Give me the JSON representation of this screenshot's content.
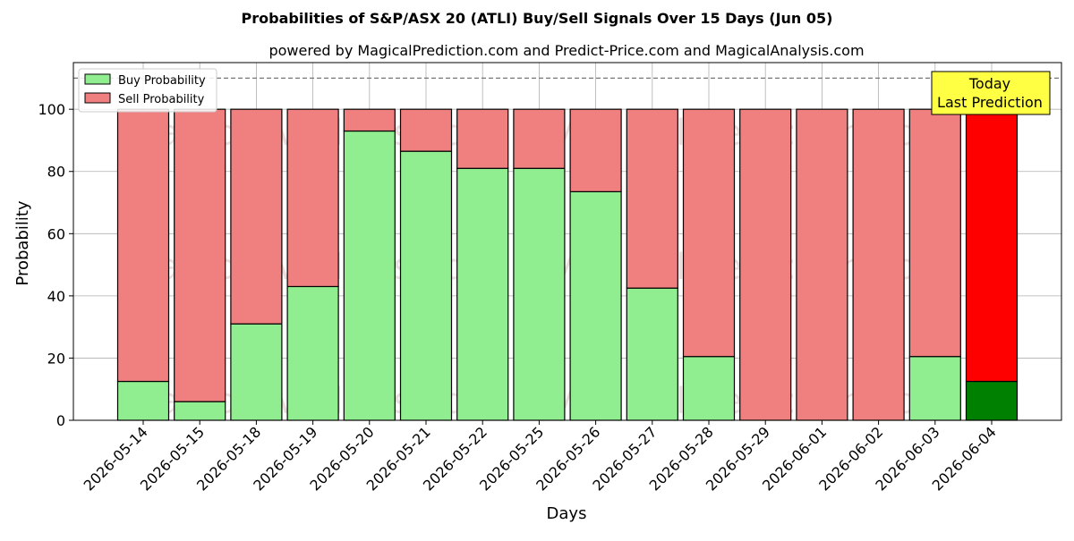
{
  "chart_data": {
    "type": "bar",
    "stacked": true,
    "title": "Probabilities of S&P/ASX 20 (ATLI) Buy/Sell Signals Over 15 Days (Jun 05)",
    "subtitle": "powered by MagicalPrediction.com and Predict-Price.com and MagicalAnalysis.com",
    "xlabel": "Days",
    "ylabel": "Probability",
    "ylim": [
      0,
      115
    ],
    "yticks": [
      0,
      20,
      40,
      60,
      80,
      100
    ],
    "grid": true,
    "legend_position": "top-left",
    "reference_line": 110,
    "categories": [
      "2026-05-14",
      "2026-05-15",
      "2026-05-18",
      "2026-05-19",
      "2026-05-20",
      "2026-05-21",
      "2026-05-22",
      "2026-05-25",
      "2026-05-26",
      "2026-05-27",
      "2026-05-28",
      "2026-05-29",
      "2026-06-01",
      "2026-06-02",
      "2026-06-03",
      "2026-06-04"
    ],
    "series": [
      {
        "name": "Buy Probability",
        "color": "#90ee90",
        "highlight_color": "#008000",
        "values": [
          12.5,
          6,
          31,
          43,
          93,
          86.5,
          81,
          81,
          73.5,
          42.5,
          20.5,
          0,
          0,
          0,
          20.5,
          12.5
        ]
      },
      {
        "name": "Sell Probability",
        "color": "#f08080",
        "highlight_color": "#ff0000",
        "values": [
          87.5,
          94,
          69,
          57,
          7,
          13.5,
          19,
          19,
          26.5,
          57.5,
          79.5,
          100,
          100,
          100,
          79.5,
          87.5
        ]
      }
    ],
    "highlight_index": 15,
    "annotation": {
      "lines": [
        "Today",
        "Last Prediction"
      ],
      "background": "#ffff44"
    },
    "watermarks": [
      "MagicalAnalysis.com",
      "MagicalPrediction.com"
    ]
  }
}
